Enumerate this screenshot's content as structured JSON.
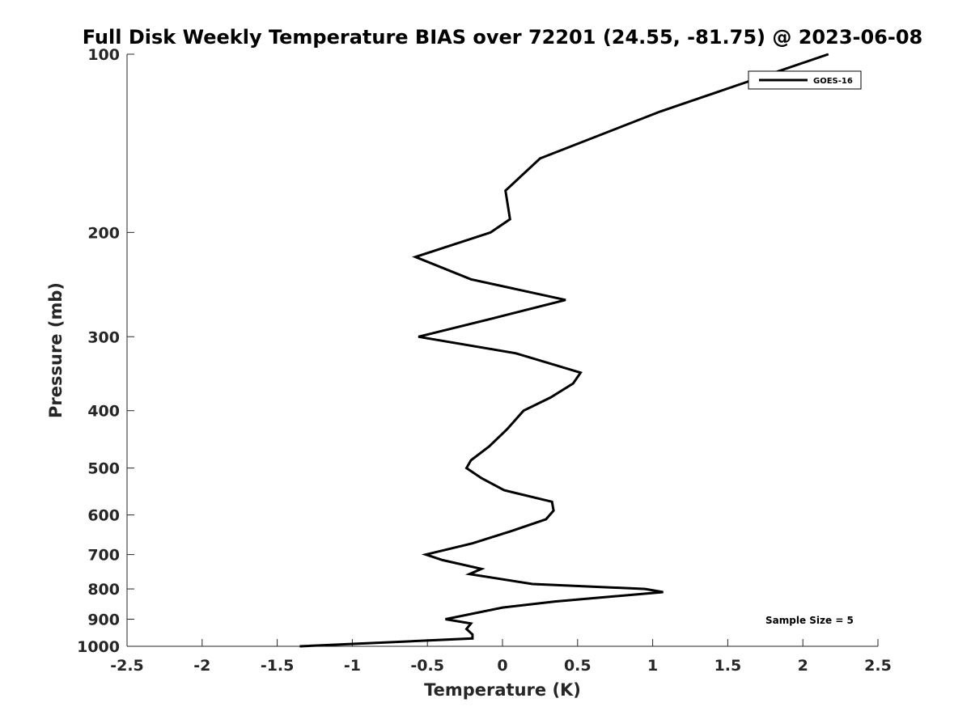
{
  "chart_data": {
    "type": "line",
    "title": "Full Disk Weekly Temperature BIAS over 72201 (24.55, -81.75) @ 2023-06-08",
    "xlabel": "Temperature (K)",
    "ylabel": "Pressure (mb)",
    "xlim": [
      -2.5,
      2.5
    ],
    "ylim": [
      1000,
      100
    ],
    "y_scale": "log",
    "y_reversed": true,
    "x_ticks": [
      -2.5,
      -2,
      -1.5,
      -1,
      -0.5,
      0,
      0.5,
      1,
      1.5,
      2,
      2.5
    ],
    "x_tick_labels": [
      "-2.5",
      "-2",
      "-1.5",
      "-1",
      "-0.5",
      "0",
      "0.5",
      "1",
      "1.5",
      "2",
      "2.5"
    ],
    "y_ticks": [
      100,
      200,
      300,
      400,
      500,
      600,
      700,
      800,
      900,
      1000
    ],
    "y_tick_labels": [
      "100",
      "200",
      "300",
      "400",
      "500",
      "600",
      "700",
      "800",
      "900",
      "1000"
    ],
    "grid": false,
    "legend_position": "top-right",
    "series": [
      {
        "name": "GOES-16",
        "color": "#000000",
        "points": [
          {
            "x": 2.17,
            "p": 100
          },
          {
            "x": 1.05,
            "p": 125
          },
          {
            "x": 0.25,
            "p": 150
          },
          {
            "x": 0.02,
            "p": 170
          },
          {
            "x": 0.05,
            "p": 190
          },
          {
            "x": -0.08,
            "p": 200
          },
          {
            "x": -0.58,
            "p": 220
          },
          {
            "x": -0.21,
            "p": 240
          },
          {
            "x": 0.42,
            "p": 260
          },
          {
            "x": -0.08,
            "p": 280
          },
          {
            "x": -0.56,
            "p": 300
          },
          {
            "x": 0.09,
            "p": 320
          },
          {
            "x": 0.52,
            "p": 345
          },
          {
            "x": 0.47,
            "p": 360
          },
          {
            "x": 0.32,
            "p": 380
          },
          {
            "x": 0.14,
            "p": 400
          },
          {
            "x": 0.03,
            "p": 430
          },
          {
            "x": -0.09,
            "p": 460
          },
          {
            "x": -0.21,
            "p": 485
          },
          {
            "x": -0.24,
            "p": 500
          },
          {
            "x": -0.14,
            "p": 520
          },
          {
            "x": 0.01,
            "p": 545
          },
          {
            "x": 0.33,
            "p": 570
          },
          {
            "x": 0.34,
            "p": 590
          },
          {
            "x": 0.29,
            "p": 610
          },
          {
            "x": 0.05,
            "p": 640
          },
          {
            "x": -0.2,
            "p": 670
          },
          {
            "x": -0.51,
            "p": 700
          },
          {
            "x": -0.4,
            "p": 715
          },
          {
            "x": -0.14,
            "p": 740
          },
          {
            "x": -0.22,
            "p": 755
          },
          {
            "x": 0.2,
            "p": 785
          },
          {
            "x": 0.95,
            "p": 800
          },
          {
            "x": 1.07,
            "p": 810
          },
          {
            "x": 0.35,
            "p": 840
          },
          {
            "x": 0.0,
            "p": 860
          },
          {
            "x": -0.38,
            "p": 900
          },
          {
            "x": -0.21,
            "p": 915
          },
          {
            "x": -0.24,
            "p": 935
          },
          {
            "x": -0.2,
            "p": 955
          },
          {
            "x": -0.2,
            "p": 970
          },
          {
            "x": -1.35,
            "p": 1000
          }
        ]
      }
    ],
    "annotation": "Sample Size = 5"
  }
}
